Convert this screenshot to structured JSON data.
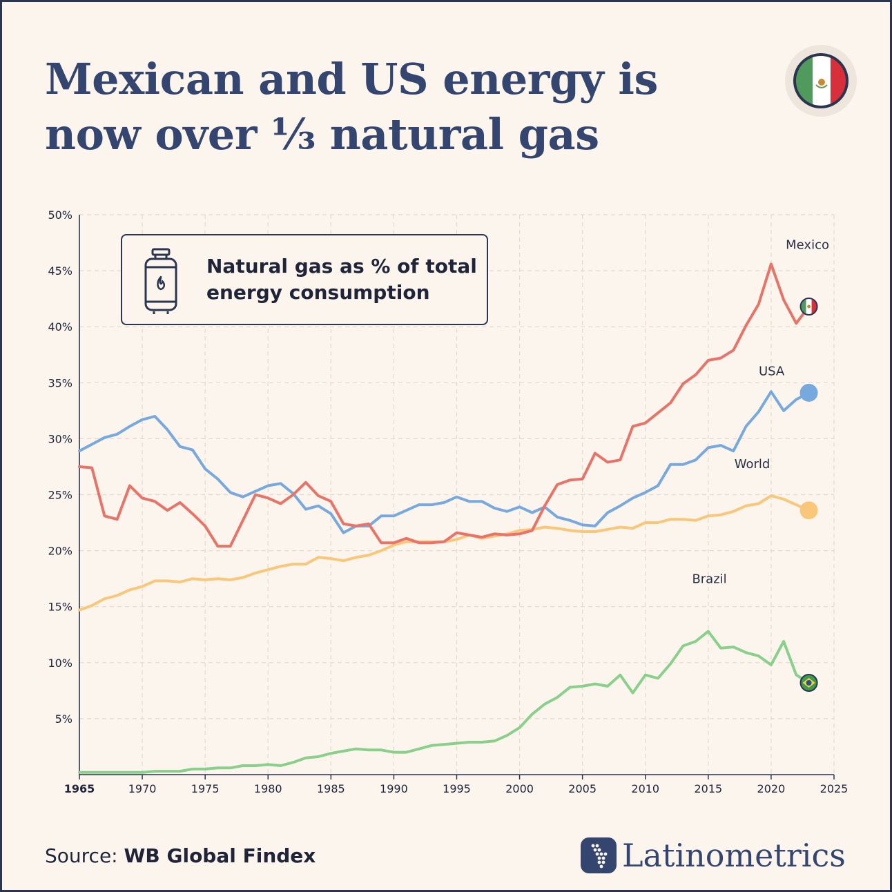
{
  "title": "Mexican and US energy is now over ⅓ natural gas",
  "legend_text": "Natural gas as % of total energy consumption",
  "source": {
    "prefix": "Source:",
    "name": "WB Global Findex"
  },
  "brand": "Latinometrics",
  "icons": {
    "badge": "mexico-flag-icon",
    "legend": "gas-cylinder-icon",
    "brand": "latin-america-map-icon"
  },
  "colors": {
    "mexico": "#e87368",
    "usa": "#78a9de",
    "world": "#f9c77a",
    "brazil": "#8ad08b",
    "title": "#34466f"
  },
  "chart_data": {
    "type": "line",
    "x_ticks": [
      "1965",
      "1970",
      "1975",
      "1980",
      "1985",
      "1990",
      "1995",
      "2000",
      "2005",
      "2010",
      "2015",
      "2020",
      "2025"
    ],
    "y_ticks": [
      "50%",
      "45%",
      "40%",
      "35%",
      "30%",
      "25%",
      "20%",
      "15%",
      "10%",
      "5%"
    ],
    "xlim": [
      1965,
      2025
    ],
    "ylim": [
      0,
      50
    ],
    "grid": true,
    "x": [
      1965,
      1966,
      1967,
      1968,
      1969,
      1970,
      1971,
      1972,
      1973,
      1974,
      1975,
      1976,
      1977,
      1978,
      1979,
      1980,
      1981,
      1982,
      1983,
      1984,
      1985,
      1986,
      1987,
      1988,
      1989,
      1990,
      1991,
      1992,
      1993,
      1994,
      1995,
      1996,
      1997,
      1998,
      1999,
      2000,
      2001,
      2002,
      2003,
      2004,
      2005,
      2006,
      2007,
      2008,
      2009,
      2010,
      2011,
      2012,
      2013,
      2014,
      2015,
      2016,
      2017,
      2018,
      2019,
      2020,
      2021,
      2022,
      2023
    ],
    "series": [
      {
        "name": "Mexico",
        "end_marker": "mexico-flag-icon",
        "values": [
          27.5,
          27.4,
          23.1,
          22.8,
          25.8,
          24.7,
          24.4,
          23.6,
          24.3,
          23.3,
          22.2,
          20.4,
          20.4,
          22.7,
          25.0,
          24.7,
          24.2,
          25.0,
          26.1,
          24.9,
          24.4,
          22.4,
          22.2,
          22.4,
          20.7,
          20.7,
          21.1,
          20.7,
          20.7,
          20.8,
          21.6,
          21.4,
          21.2,
          21.5,
          21.4,
          21.5,
          21.8,
          24.0,
          25.9,
          26.3,
          26.4,
          28.7,
          27.9,
          28.1,
          31.1,
          31.4,
          32.3,
          33.2,
          34.9,
          35.7,
          37.0,
          37.2,
          37.9,
          40.1,
          42.0,
          45.6,
          42.4,
          40.3,
          41.8
        ]
      },
      {
        "name": "USA",
        "end_marker": "dot",
        "values": [
          28.9,
          29.5,
          30.1,
          30.4,
          31.1,
          31.7,
          32.0,
          30.8,
          29.3,
          29.0,
          27.3,
          26.4,
          25.2,
          24.8,
          25.3,
          25.8,
          26.0,
          25.1,
          23.7,
          24.0,
          23.3,
          21.6,
          22.2,
          22.2,
          23.1,
          23.1,
          23.6,
          24.1,
          24.1,
          24.3,
          24.8,
          24.4,
          24.4,
          23.8,
          23.5,
          23.9,
          23.4,
          23.9,
          23.0,
          22.7,
          22.3,
          22.2,
          23.4,
          24.0,
          24.7,
          25.2,
          25.8,
          27.7,
          27.7,
          28.1,
          29.2,
          29.4,
          28.9,
          31.1,
          32.4,
          34.2,
          32.5,
          33.5,
          34.1
        ]
      },
      {
        "name": "World",
        "end_marker": "dot",
        "values": [
          14.7,
          15.1,
          15.7,
          16.0,
          16.5,
          16.8,
          17.3,
          17.3,
          17.2,
          17.5,
          17.4,
          17.5,
          17.4,
          17.6,
          18.0,
          18.3,
          18.6,
          18.8,
          18.8,
          19.4,
          19.3,
          19.1,
          19.4,
          19.6,
          20.0,
          20.5,
          20.8,
          20.8,
          20.8,
          20.8,
          21.0,
          21.4,
          21.1,
          21.3,
          21.5,
          21.8,
          21.9,
          22.1,
          22.0,
          21.8,
          21.7,
          21.7,
          21.9,
          22.1,
          22.0,
          22.5,
          22.5,
          22.8,
          22.8,
          22.7,
          23.1,
          23.2,
          23.5,
          24.0,
          24.2,
          24.9,
          24.6,
          24.1,
          23.6
        ]
      },
      {
        "name": "Brazil",
        "end_marker": "brazil-flag-icon",
        "values": [
          0.2,
          0.2,
          0.2,
          0.2,
          0.2,
          0.2,
          0.3,
          0.3,
          0.3,
          0.5,
          0.5,
          0.6,
          0.6,
          0.8,
          0.8,
          0.9,
          0.8,
          1.1,
          1.5,
          1.6,
          1.9,
          2.1,
          2.3,
          2.2,
          2.2,
          2.0,
          2.0,
          2.3,
          2.6,
          2.7,
          2.8,
          2.9,
          2.9,
          3.0,
          3.5,
          4.2,
          5.4,
          6.3,
          6.9,
          7.8,
          7.9,
          8.1,
          7.9,
          8.9,
          7.3,
          8.9,
          8.6,
          9.9,
          11.5,
          11.9,
          12.8,
          11.3,
          11.4,
          10.9,
          10.6,
          9.8,
          11.9,
          8.9,
          8.2
        ]
      }
    ]
  }
}
